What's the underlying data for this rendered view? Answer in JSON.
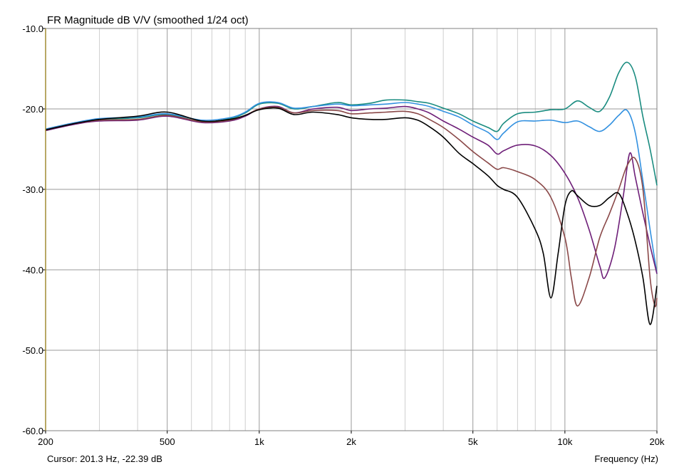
{
  "chart_data": {
    "type": "line",
    "title": "FR Magnitude dB V/V (smoothed 1/24 oct)",
    "xlabel": "Frequency (Hz)",
    "ylabel": "",
    "x_scale": "log",
    "xlim": [
      200,
      20000
    ],
    "ylim": [
      -60,
      -10
    ],
    "grid": true,
    "x_tick_labels": [
      {
        "value": 200,
        "label": "200"
      },
      {
        "value": 500,
        "label": "500"
      },
      {
        "value": 1000,
        "label": "1k"
      },
      {
        "value": 2000,
        "label": "2k"
      },
      {
        "value": 5000,
        "label": "5k"
      },
      {
        "value": 10000,
        "label": "10k"
      },
      {
        "value": 20000,
        "label": "20k"
      }
    ],
    "y_tick_labels": [
      {
        "value": -10,
        "label": "-10.0"
      },
      {
        "value": -20,
        "label": "-20.0"
      },
      {
        "value": -30,
        "label": "-30.0"
      },
      {
        "value": -40,
        "label": "-40.0"
      },
      {
        "value": -50,
        "label": "-50.0"
      },
      {
        "value": -60,
        "label": "-60.0"
      }
    ],
    "cursor_text": "Cursor: 201.3 Hz, -22.39 dB",
    "series": [
      {
        "color": "#1a8c80",
        "points": [
          [
            200,
            -22.6
          ],
          [
            250,
            -21.8
          ],
          [
            300,
            -21.3
          ],
          [
            400,
            -21.1
          ],
          [
            500,
            -20.7
          ],
          [
            650,
            -21.6
          ],
          [
            800,
            -21.2
          ],
          [
            900,
            -20.5
          ],
          [
            1000,
            -19.4
          ],
          [
            1150,
            -19.3
          ],
          [
            1300,
            -20.0
          ],
          [
            1500,
            -19.7
          ],
          [
            1800,
            -19.2
          ],
          [
            2000,
            -19.5
          ],
          [
            2300,
            -19.3
          ],
          [
            2600,
            -18.9
          ],
          [
            3000,
            -18.9
          ],
          [
            3300,
            -19.1
          ],
          [
            3600,
            -19.3
          ],
          [
            4000,
            -19.9
          ],
          [
            4500,
            -20.6
          ],
          [
            5000,
            -21.5
          ],
          [
            5600,
            -22.3
          ],
          [
            6000,
            -22.8
          ],
          [
            6300,
            -21.8
          ],
          [
            7000,
            -20.6
          ],
          [
            8000,
            -20.4
          ],
          [
            9000,
            -20.1
          ],
          [
            10000,
            -20.0
          ],
          [
            11000,
            -19.0
          ],
          [
            12000,
            -19.8
          ],
          [
            13000,
            -20.3
          ],
          [
            14000,
            -18.5
          ],
          [
            15000,
            -15.5
          ],
          [
            16000,
            -14.2
          ],
          [
            17000,
            -16.0
          ],
          [
            18000,
            -21.0
          ],
          [
            19000,
            -25.0
          ],
          [
            20000,
            -29.5
          ]
        ]
      },
      {
        "color": "#3391e0",
        "points": [
          [
            200,
            -22.5
          ],
          [
            250,
            -21.7
          ],
          [
            300,
            -21.2
          ],
          [
            400,
            -21.0
          ],
          [
            500,
            -20.6
          ],
          [
            650,
            -21.4
          ],
          [
            800,
            -21.1
          ],
          [
            900,
            -20.4
          ],
          [
            1000,
            -19.3
          ],
          [
            1150,
            -19.2
          ],
          [
            1300,
            -19.9
          ],
          [
            1500,
            -19.7
          ],
          [
            1800,
            -19.4
          ],
          [
            2000,
            -19.6
          ],
          [
            2300,
            -19.5
          ],
          [
            2600,
            -19.4
          ],
          [
            3000,
            -19.2
          ],
          [
            3300,
            -19.4
          ],
          [
            3600,
            -19.7
          ],
          [
            4000,
            -20.3
          ],
          [
            4500,
            -21.0
          ],
          [
            5000,
            -22.0
          ],
          [
            5600,
            -22.9
          ],
          [
            6000,
            -23.8
          ],
          [
            6300,
            -23.0
          ],
          [
            7000,
            -21.6
          ],
          [
            8000,
            -21.5
          ],
          [
            9000,
            -21.4
          ],
          [
            10000,
            -21.7
          ],
          [
            11000,
            -21.5
          ],
          [
            12000,
            -22.2
          ],
          [
            13000,
            -22.8
          ],
          [
            14000,
            -22.0
          ],
          [
            15000,
            -20.8
          ],
          [
            16000,
            -20.2
          ],
          [
            17000,
            -23.0
          ],
          [
            18000,
            -29.0
          ],
          [
            19000,
            -35.0
          ],
          [
            20000,
            -40.5
          ]
        ]
      },
      {
        "color": "#6e1f78",
        "points": [
          [
            200,
            -22.7
          ],
          [
            250,
            -21.9
          ],
          [
            300,
            -21.5
          ],
          [
            400,
            -21.4
          ],
          [
            500,
            -20.9
          ],
          [
            650,
            -21.7
          ],
          [
            800,
            -21.5
          ],
          [
            900,
            -20.9
          ],
          [
            1000,
            -20.0
          ],
          [
            1150,
            -19.7
          ],
          [
            1300,
            -20.5
          ],
          [
            1500,
            -20.0
          ],
          [
            1800,
            -19.8
          ],
          [
            2000,
            -20.2
          ],
          [
            2300,
            -20.0
          ],
          [
            2600,
            -19.9
          ],
          [
            3000,
            -19.7
          ],
          [
            3300,
            -20.0
          ],
          [
            3600,
            -20.5
          ],
          [
            4000,
            -21.5
          ],
          [
            4500,
            -22.5
          ],
          [
            5000,
            -23.5
          ],
          [
            5600,
            -24.5
          ],
          [
            6000,
            -25.6
          ],
          [
            6300,
            -25.2
          ],
          [
            7000,
            -24.5
          ],
          [
            8000,
            -24.6
          ],
          [
            9000,
            -25.8
          ],
          [
            10000,
            -28.0
          ],
          [
            11000,
            -31.0
          ],
          [
            12000,
            -35.0
          ],
          [
            13000,
            -39.5
          ],
          [
            13500,
            -41.0
          ],
          [
            14500,
            -37.5
          ],
          [
            15500,
            -31.0
          ],
          [
            16300,
            -25.5
          ],
          [
            17000,
            -28.5
          ],
          [
            18000,
            -33.0
          ],
          [
            19000,
            -37.0
          ],
          [
            20000,
            -40.5
          ]
        ]
      },
      {
        "color": "#8a4848",
        "points": [
          [
            200,
            -22.6
          ],
          [
            250,
            -21.8
          ],
          [
            300,
            -21.4
          ],
          [
            400,
            -21.3
          ],
          [
            500,
            -20.8
          ],
          [
            650,
            -21.6
          ],
          [
            800,
            -21.4
          ],
          [
            900,
            -20.8
          ],
          [
            1000,
            -20.0
          ],
          [
            1150,
            -19.8
          ],
          [
            1300,
            -20.5
          ],
          [
            1500,
            -20.2
          ],
          [
            1800,
            -20.2
          ],
          [
            2000,
            -20.6
          ],
          [
            2300,
            -20.5
          ],
          [
            2600,
            -20.4
          ],
          [
            3000,
            -20.3
          ],
          [
            3300,
            -20.6
          ],
          [
            3600,
            -21.3
          ],
          [
            4000,
            -22.3
          ],
          [
            4500,
            -23.8
          ],
          [
            5000,
            -25.3
          ],
          [
            5600,
            -26.7
          ],
          [
            6000,
            -27.5
          ],
          [
            6300,
            -27.3
          ],
          [
            7000,
            -27.8
          ],
          [
            8000,
            -28.8
          ],
          [
            9000,
            -31.0
          ],
          [
            10000,
            -36.0
          ],
          [
            10500,
            -41.0
          ],
          [
            11000,
            -44.5
          ],
          [
            12000,
            -41.0
          ],
          [
            13000,
            -36.0
          ],
          [
            14000,
            -33.0
          ],
          [
            15000,
            -30.0
          ],
          [
            16000,
            -27.0
          ],
          [
            17000,
            -26.2
          ],
          [
            18000,
            -30.0
          ],
          [
            19000,
            -41.0
          ],
          [
            19700,
            -44.5
          ],
          [
            20000,
            -43.5
          ]
        ]
      },
      {
        "color": "#000000",
        "points": [
          [
            200,
            -22.6
          ],
          [
            250,
            -21.8
          ],
          [
            300,
            -21.3
          ],
          [
            400,
            -20.9
          ],
          [
            500,
            -20.4
          ],
          [
            650,
            -21.5
          ],
          [
            800,
            -21.3
          ],
          [
            900,
            -20.8
          ],
          [
            1000,
            -20.1
          ],
          [
            1150,
            -19.9
          ],
          [
            1300,
            -20.7
          ],
          [
            1500,
            -20.4
          ],
          [
            1800,
            -20.7
          ],
          [
            2000,
            -21.1
          ],
          [
            2300,
            -21.3
          ],
          [
            2600,
            -21.3
          ],
          [
            3000,
            -21.1
          ],
          [
            3300,
            -21.4
          ],
          [
            3600,
            -22.2
          ],
          [
            4000,
            -23.5
          ],
          [
            4500,
            -25.5
          ],
          [
            5000,
            -26.8
          ],
          [
            5600,
            -28.3
          ],
          [
            6000,
            -29.5
          ],
          [
            6300,
            -30.0
          ],
          [
            7000,
            -31.0
          ],
          [
            8000,
            -35.0
          ],
          [
            8500,
            -38.0
          ],
          [
            9000,
            -43.5
          ],
          [
            9500,
            -38.0
          ],
          [
            10000,
            -32.0
          ],
          [
            10500,
            -30.2
          ],
          [
            11000,
            -30.8
          ],
          [
            12000,
            -32.0
          ],
          [
            13000,
            -32.0
          ],
          [
            14000,
            -31.0
          ],
          [
            15000,
            -30.5
          ],
          [
            16000,
            -33.0
          ],
          [
            17000,
            -36.5
          ],
          [
            18000,
            -41.0
          ],
          [
            19000,
            -46.8
          ],
          [
            20000,
            -42.0
          ]
        ]
      }
    ]
  }
}
